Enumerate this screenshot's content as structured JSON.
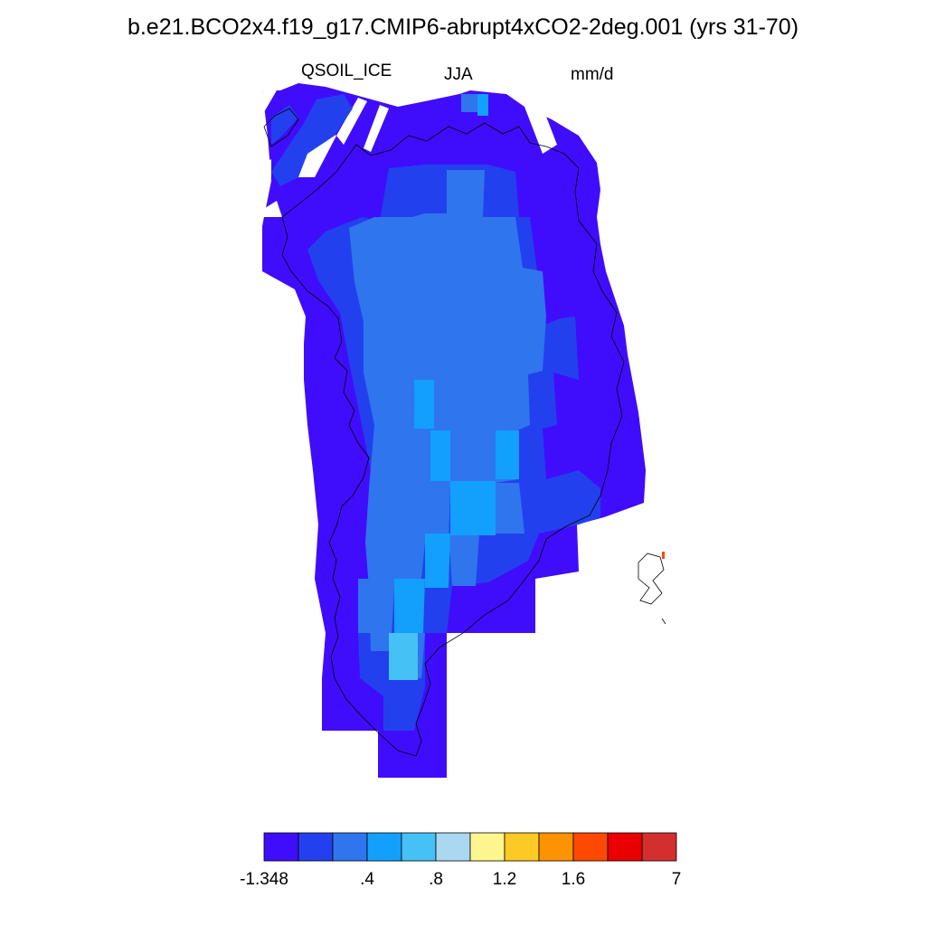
{
  "header": {
    "title": "b.e21.BCO2x4.f19_g17.CMIP6-abrupt4xCO2-2deg.001 (yrs 31-70)",
    "variable": "QSOIL_ICE",
    "season": "JJA",
    "units": "mm/d"
  },
  "colorbar": {
    "colors": [
      "#3f0dfb",
      "#2340ee",
      "#2f75ee",
      "#12a0fc",
      "#45c1f6",
      "#a9d8f0",
      "#fff68f",
      "#fdc924",
      "#fd9300",
      "#fd4a00",
      "#ea0000",
      "#d32f2f"
    ],
    "labels": [
      "-1.348",
      ".4",
      ".8",
      "1.2",
      "1.6",
      "7"
    ]
  },
  "chart_data": {
    "type": "heatmap",
    "title": "b.e21.BCO2x4.f19_g17.CMIP6-abrupt4xCO2-2deg.001 (yrs 31-70)",
    "variable": "QSOIL_ICE",
    "season": "JJA",
    "units": "mm/d",
    "region": "Greenland",
    "color_levels": [
      "-1.348",
      ".4",
      ".8",
      "1.2",
      "1.6",
      "7"
    ],
    "dominant_level": "lowest bin (< -1.348 .. .4 range, dark blue) around ice sheet margins; interior values in .4-.8 range with scattered .8-1.2 cells"
  }
}
